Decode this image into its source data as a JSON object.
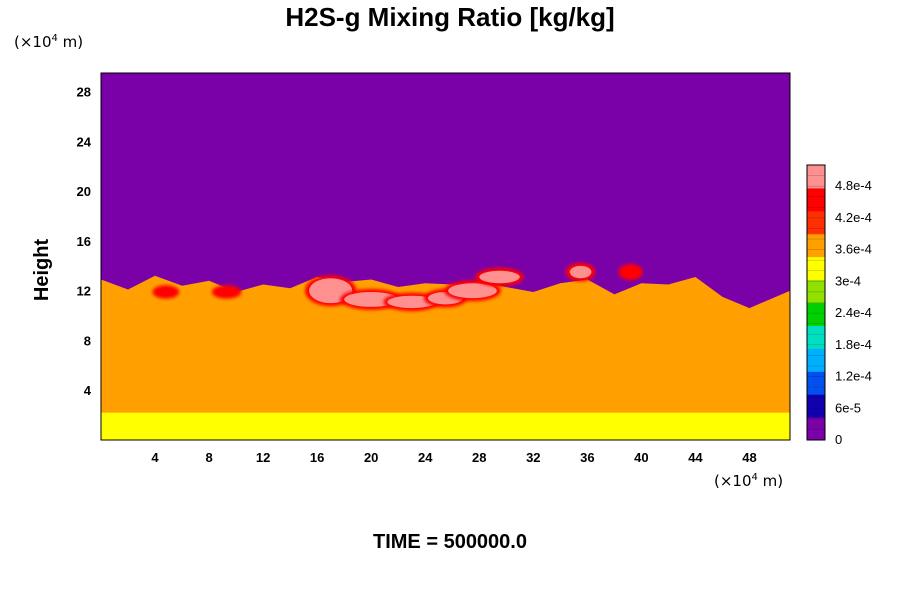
{
  "chart_data": {
    "type": "heatmap",
    "title": "H2S-g Mixing Ratio [kg/kg]",
    "ylabel": "Height",
    "xlabel": "",
    "x_unit": {
      "prefix": "(×10",
      "exp": "4",
      "suffix": " m)"
    },
    "y_unit": {
      "prefix": "(×10",
      "exp": "4",
      "suffix": " m)"
    },
    "xlim": [
      0,
      51
    ],
    "ylim": [
      0,
      29.5
    ],
    "x_ticks": [
      "4",
      "8",
      "12",
      "16",
      "20",
      "24",
      "28",
      "32",
      "36",
      "40",
      "44",
      "48"
    ],
    "y_ticks": [
      "4",
      "8",
      "12",
      "16",
      "20",
      "24",
      "28"
    ],
    "colorbar": {
      "range": [
        0,
        0.00052
      ],
      "labels": [
        "0",
        "6e-5",
        "1.2e-4",
        "1.8e-4",
        "2.4e-4",
        "3e-4",
        "3.6e-4",
        "4.2e-4",
        "4.8e-4"
      ],
      "colors": [
        "#7a00a8",
        "#1000ae",
        "#0050f0",
        "#00b0ff",
        "#00e0c0",
        "#00d000",
        "#90e000",
        "#ffff00",
        "#ffa000",
        "#ff3000",
        "#ff0000",
        "#ff9090"
      ]
    },
    "fields": {
      "upper_value": 0,
      "lower_value": 0.00037,
      "top_ground_value": 0.00034,
      "boundary_x": [
        0,
        2,
        4,
        6,
        8,
        10,
        12,
        14,
        16,
        18,
        20,
        22,
        24,
        26,
        28,
        30,
        32,
        34,
        36,
        38,
        40,
        42,
        44,
        46,
        48,
        51
      ],
      "boundary_y": [
        14.6,
        13.8,
        14.9,
        14.1,
        14.5,
        13.6,
        14.2,
        13.9,
        14.8,
        14.4,
        14.6,
        14.0,
        14.3,
        14.2,
        14.4,
        14.0,
        13.6,
        14.3,
        14.6,
        13.4,
        14.3,
        14.2,
        14.8,
        13.2,
        12.3,
        13.7
      ]
    },
    "hotspots": [
      {
        "x": 17,
        "y": 12.0,
        "rx": 1.6,
        "ry": 1.0,
        "value": 0.0005
      },
      {
        "x": 20,
        "y": 11.3,
        "rx": 2.0,
        "ry": 0.6,
        "value": 0.00052
      },
      {
        "x": 23,
        "y": 11.1,
        "rx": 1.8,
        "ry": 0.5,
        "value": 0.00051
      },
      {
        "x": 25.5,
        "y": 11.4,
        "rx": 1.3,
        "ry": 0.5,
        "value": 0.0005
      },
      {
        "x": 27.5,
        "y": 12.0,
        "rx": 1.8,
        "ry": 0.6,
        "value": 0.00049
      },
      {
        "x": 29.5,
        "y": 13.1,
        "rx": 1.5,
        "ry": 0.5,
        "value": 0.00048
      },
      {
        "x": 35.5,
        "y": 13.5,
        "rx": 0.8,
        "ry": 0.5,
        "value": 0.00048
      },
      {
        "x": 39.2,
        "y": 13.5,
        "rx": 0.6,
        "ry": 0.4,
        "value": 0.00047
      },
      {
        "x": 9.3,
        "y": 11.9,
        "rx": 0.8,
        "ry": 0.3,
        "value": 0.00046
      },
      {
        "x": 4.8,
        "y": 11.9,
        "rx": 0.7,
        "ry": 0.3,
        "value": 0.00045
      }
    ]
  },
  "footer": {
    "label": "TIME = 500000.0"
  }
}
